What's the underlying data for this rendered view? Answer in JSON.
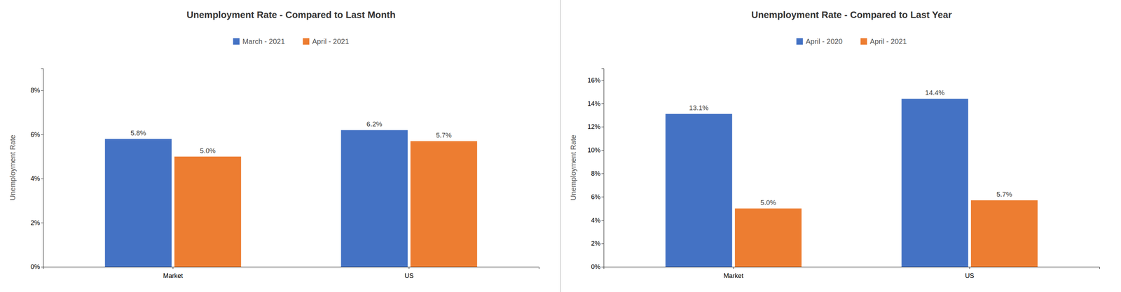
{
  "chart_data": [
    {
      "type": "bar",
      "title": "Unemployment Rate - Compared to Last Month",
      "categories": [
        "Market",
        "US"
      ],
      "series": [
        {
          "name": "March - 2021",
          "color": "#4472C4",
          "values": [
            5.8,
            6.2
          ],
          "value_labels": [
            "5.8%",
            "6.2%"
          ]
        },
        {
          "name": "April - 2021",
          "color": "#ED7D31",
          "values": [
            5.0,
            5.7
          ],
          "value_labels": [
            "5.0%",
            "5.7%"
          ]
        }
      ],
      "ylabel": "Unemployment Rate",
      "ylim": [
        0,
        9
      ],
      "yticks": [
        {
          "value": 0,
          "label": "0%"
        },
        {
          "value": 2,
          "label": "2%"
        },
        {
          "value": 4,
          "label": "4%"
        },
        {
          "value": 6,
          "label": "6%"
        },
        {
          "value": 8,
          "label": "8%"
        }
      ],
      "grid": false,
      "legend": "top",
      "data_labels": true
    },
    {
      "type": "bar",
      "title": "Unemployment Rate - Compared to Last Year",
      "categories": [
        "Market",
        "US"
      ],
      "series": [
        {
          "name": "April - 2020",
          "color": "#4472C4",
          "values": [
            13.1,
            14.4
          ],
          "value_labels": [
            "13.1%",
            "14.4%"
          ]
        },
        {
          "name": "April - 2021",
          "color": "#ED7D31",
          "values": [
            5.0,
            5.7
          ],
          "value_labels": [
            "5.0%",
            "5.7%"
          ]
        }
      ],
      "ylabel": "Unemployment Rate",
      "ylim": [
        0,
        17
      ],
      "yticks": [
        {
          "value": 0,
          "label": "0%"
        },
        {
          "value": 2,
          "label": "2%"
        },
        {
          "value": 4,
          "label": "4%"
        },
        {
          "value": 6,
          "label": "6%"
        },
        {
          "value": 8,
          "label": "8%"
        },
        {
          "value": 10,
          "label": "10%"
        },
        {
          "value": 12,
          "label": "12%"
        },
        {
          "value": 14,
          "label": "14%"
        },
        {
          "value": 16,
          "label": "16%"
        }
      ],
      "grid": false,
      "legend": "top",
      "data_labels": true
    }
  ]
}
